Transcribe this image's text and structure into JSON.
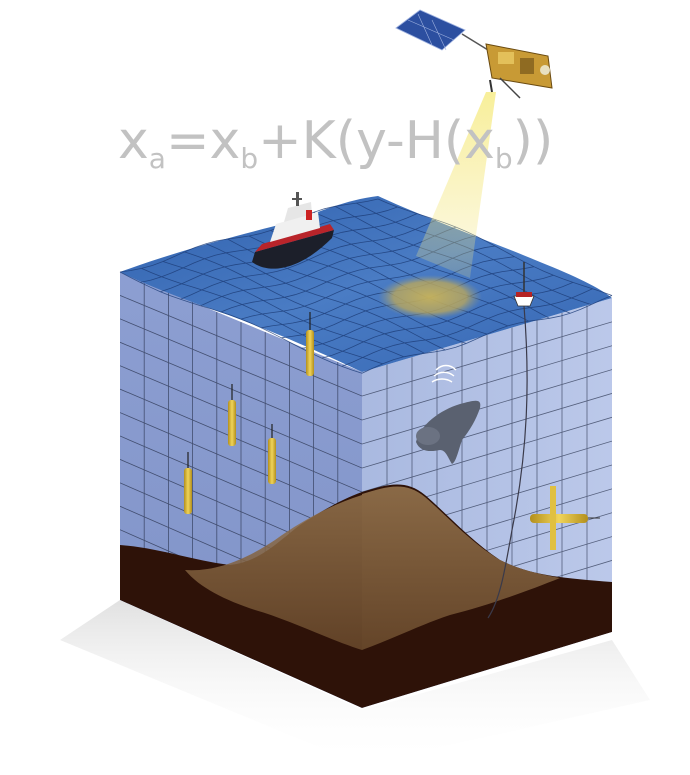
{
  "formula": {
    "x1": "x",
    "sub_a": "a",
    "eq": "=",
    "x2": "x",
    "sub_b1": "b",
    "plus": "+",
    "k": "K",
    "open": "(",
    "y": "y",
    "minus": "-",
    "h": "H",
    "open2": "(",
    "x3": "x",
    "sub_b2": "b",
    "close": "))"
  },
  "colors": {
    "ocean_surface": "#3d6fb8",
    "front_face": "#8c9ed0",
    "side_face": "#b3c2e4",
    "grid_line": "#2b3550",
    "seabed_dark": "#2e1208",
    "seabed_sand": "#8a6a45",
    "float_yellow": "#d9b532",
    "satellite_beam": "#efe070"
  },
  "icons": {
    "satellite": "satellite-icon",
    "ship": "research-vessel-icon",
    "buoy": "moored-buoy-icon",
    "argo_float": "profiling-float-icon",
    "seal": "tagged-seal-icon",
    "glider": "underwater-glider-icon"
  }
}
